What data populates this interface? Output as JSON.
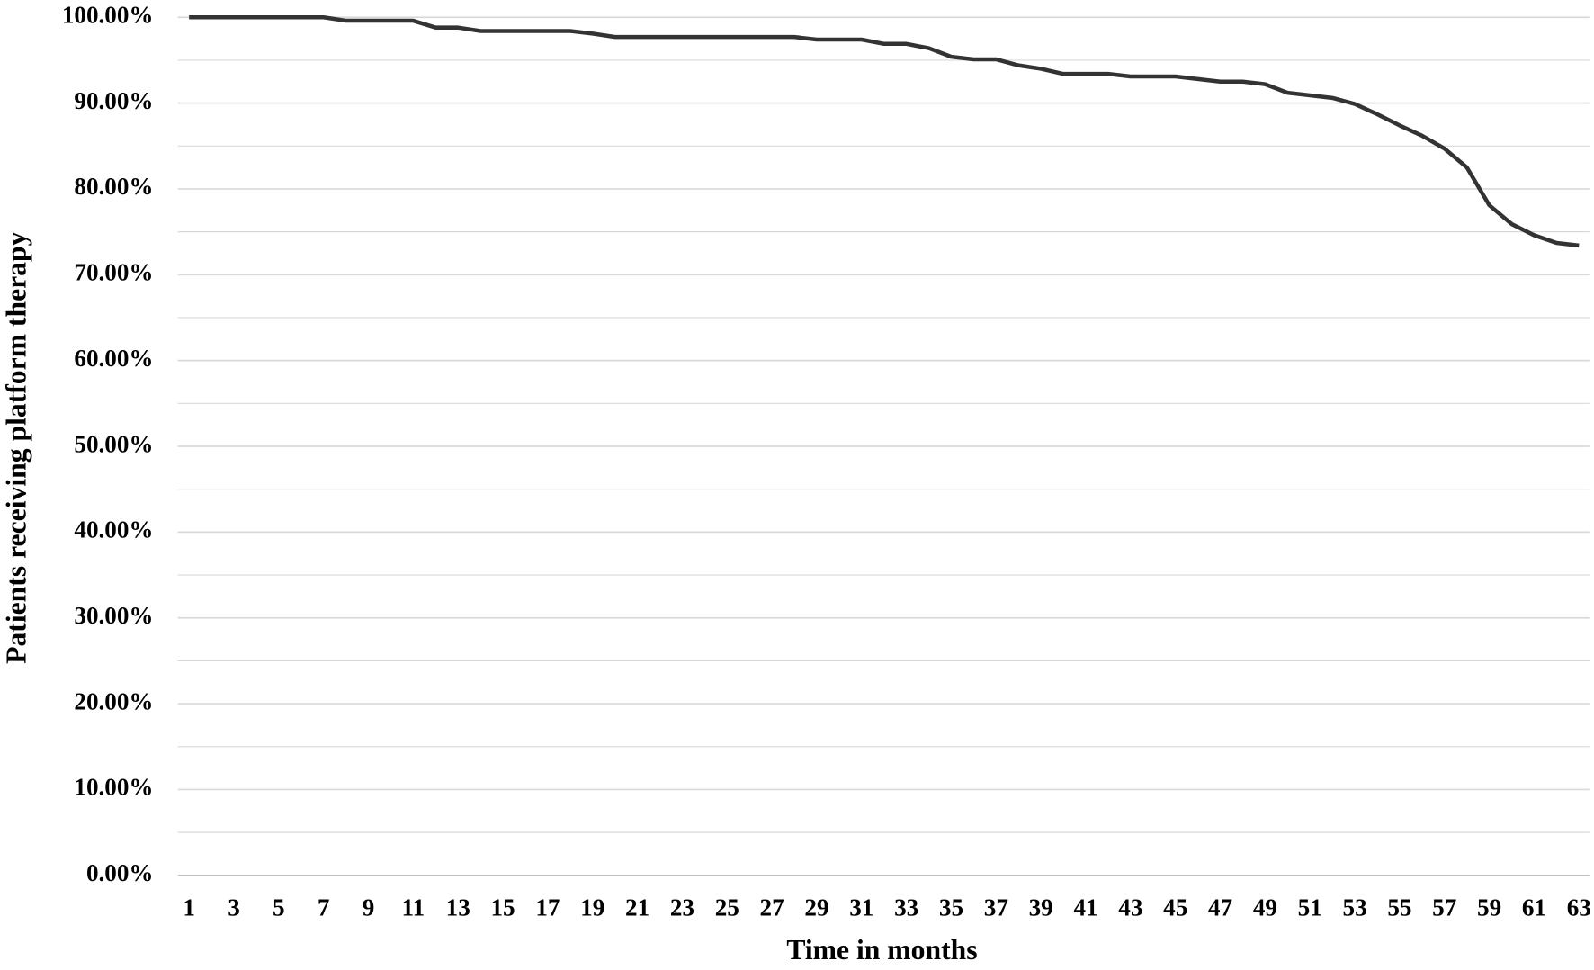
{
  "chart_data": {
    "type": "line",
    "y_label": "Patients receiving platform therapy",
    "x_label": "Time in months",
    "categories": [
      1,
      null,
      3,
      null,
      5,
      null,
      7,
      null,
      9,
      null,
      11,
      null,
      13,
      null,
      15,
      null,
      17,
      null,
      19,
      null,
      21,
      null,
      23,
      null,
      25,
      null,
      27,
      null,
      29,
      null,
      31,
      null,
      33,
      null,
      35,
      null,
      37,
      null,
      39,
      null,
      41,
      null,
      43,
      null,
      45,
      null,
      47,
      null,
      49,
      null,
      51,
      null,
      53,
      null,
      55,
      null,
      57,
      null,
      59,
      null,
      61,
      null,
      63
    ],
    "values": [
      100,
      100,
      100,
      100,
      100,
      100,
      100,
      99.6,
      99.6,
      99.6,
      99.6,
      98.8,
      98.8,
      98.4,
      98.4,
      98.4,
      98.4,
      98.4,
      98.1,
      97.7,
      97.7,
      97.7,
      97.7,
      97.7,
      97.7,
      97.7,
      97.7,
      97.7,
      97.4,
      97.4,
      97.4,
      96.9,
      96.9,
      96.4,
      95.4,
      95.1,
      95.1,
      94.4,
      94.0,
      93.4,
      93.4,
      93.4,
      93.1,
      93.1,
      93.1,
      92.8,
      92.5,
      92.5,
      92.2,
      91.2,
      90.9,
      90.6,
      89.9,
      88.7,
      87.4,
      86.2,
      84.7,
      82.5,
      78.1,
      75.9,
      74.6,
      73.7,
      73.4
    ],
    "color": "#333333",
    "ylim": [
      0,
      100
    ],
    "yticks": [
      {
        "value": 0,
        "label": "0.00%"
      },
      {
        "value": 10,
        "label": "10.00%"
      },
      {
        "value": 20,
        "label": "20.00%"
      },
      {
        "value": 30,
        "label": "30.00%"
      },
      {
        "value": 40,
        "label": "40.00%"
      },
      {
        "value": 50,
        "label": "50.00%"
      },
      {
        "value": 60,
        "label": "60.00%"
      },
      {
        "value": 70,
        "label": "70.00%"
      },
      {
        "value": 80,
        "label": "80.00%"
      },
      {
        "value": 90,
        "label": "90.00%"
      },
      {
        "value": 100,
        "label": "100.00%"
      }
    ],
    "minor_yticks": [
      5,
      15,
      25,
      35,
      45,
      55,
      65,
      75,
      85,
      95
    ],
    "grid": true
  }
}
